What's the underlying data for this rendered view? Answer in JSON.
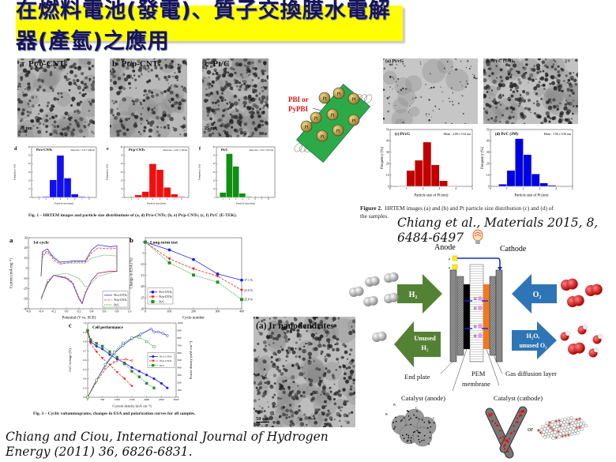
{
  "title": "在燃料電池(發電)、質子交換膜水電解器(產氫)之應用",
  "fig1": {
    "tem": [
      {
        "panel": "a",
        "label": "Pt/o-CNTs",
        "scale": "25 nm"
      },
      {
        "panel": "b",
        "label": "Pt/p-CNTs",
        "scale": ""
      },
      {
        "panel": "c",
        "label": "Pt/C",
        "scale": "25 nm"
      }
    ],
    "caption": "Fig. 1 – HRTEM images and particle size distributions of (a, d) Pt/o-CNTs; (b, e) Pt/p-CNTs; (c, f) Pt/C (E-TEK)."
  },
  "pbi": {
    "label_line1": "PBI or",
    "label_line2": "PyPBI",
    "particle": "Pt"
  },
  "fig2": {
    "tem": [
      {
        "label": "(a) Pt/cG"
      },
      {
        "label": "(b) Pt/C (JM)"
      }
    ],
    "caption_bold": "Figure 2.",
    "caption": "HRTEM images (a) and (b) and Pt particle size distribution (c) and (d) of",
    "caption_line2": "the samples.",
    "citation": "Chiang et al., Materials 2015, 8, 6484-6497"
  },
  "fig3": {
    "caption": "Fig. 3 – Cyclic voltammograms, changes in ESA and polarization curves for all samples."
  },
  "ir_tem": {
    "label": "(a) Ir nanodendrites",
    "scale": "50 nm"
  },
  "citation_bottom": {
    "line1": "Chiang and Ciou, International Journal of Hydrogen",
    "line2": "Energy (2011) 36, 6826-6831."
  },
  "fuel_cell": {
    "anode": "Anode",
    "cathode": "Cathode",
    "electron": "e",
    "h2_in": "H₂",
    "h2_out_1": "Unused",
    "h2_out_2": "H₂",
    "o2_in": "O₂",
    "out_1": "H₂O,",
    "out_2": "unused O₂",
    "proton": "H",
    "end_plate": "End plate",
    "pem_1": "PEM",
    "pem_2": "membrane",
    "gdl": "Gas diffusion layer",
    "cat_anode": "Catalyst (anode)",
    "cat_cathode": "Catalyst (cathode)",
    "pt": "Pt",
    "c": "C",
    "or": "or",
    "colors": {
      "h2_arrow": "#548235",
      "o2_arrow": "#2e75b6",
      "cathode_catalyst": "#f07820",
      "anode_catalyst": "#000000",
      "proton": "#e89ae8"
    }
  },
  "chart_data": [
    {
      "id": "fig1-d",
      "type": "bar",
      "panel": "d",
      "title": "Pt/o-CNTs",
      "annotation": "Mean size = 3.52 ± 0.86 nm",
      "xlabel": "Particle size (nm)",
      "ylabel": "Frequency (%)",
      "xlim": [
        0,
        9
      ],
      "ylim": [
        0,
        60
      ],
      "xticks": [
        "1",
        "2",
        "3",
        "4",
        "5",
        "6",
        "7",
        "8"
      ],
      "xtick_values": [
        1,
        2,
        3,
        4,
        5,
        6,
        7,
        8
      ],
      "yticks": [
        "0",
        "10",
        "20",
        "30",
        "40",
        "50",
        "60"
      ],
      "ytick_values": [
        0,
        10,
        20,
        30,
        40,
        50,
        60
      ],
      "bin_start": 0.5,
      "bin_width": 1,
      "series": [
        {
          "color": "#1010ee",
          "values": [
            0,
            1,
            21,
            50,
            23,
            4,
            1,
            0
          ]
        }
      ]
    },
    {
      "id": "fig1-e",
      "type": "bar",
      "panel": "e",
      "title": "Pt/p-CNTs",
      "annotation": "Mean size = 4.29 ± 1.08 nm",
      "xlabel": "Particle size (nm)",
      "ylabel": "Frequency (%)",
      "xlim": [
        0,
        9
      ],
      "ylim": [
        0,
        60
      ],
      "xticks": [
        "1",
        "2",
        "3",
        "4",
        "5",
        "6",
        "7",
        "8"
      ],
      "xtick_values": [
        1,
        2,
        3,
        4,
        5,
        6,
        7,
        8
      ],
      "yticks": [
        "0",
        "10",
        "20",
        "30",
        "40",
        "50",
        "60"
      ],
      "ytick_values": [
        0,
        10,
        20,
        30,
        40,
        50,
        60
      ],
      "bin_start": 0.5,
      "bin_width": 1,
      "series": [
        {
          "color": "#ee1010",
          "values": [
            0,
            3,
            7,
            40,
            33,
            12,
            4,
            1
          ]
        }
      ]
    },
    {
      "id": "fig1-f",
      "type": "bar",
      "panel": "f",
      "title": "Pt/C",
      "annotation": "Mean size = 2.61 ± 0.67 nm",
      "xlabel": "Particle size (nm)",
      "ylabel": "Frequency (%)",
      "xlim": [
        0,
        9
      ],
      "ylim": [
        0,
        60
      ],
      "xticks": [
        "1",
        "2",
        "3",
        "4",
        "5",
        "6",
        "7",
        "8"
      ],
      "xtick_values": [
        1,
        2,
        3,
        4,
        5,
        6,
        7,
        8
      ],
      "yticks": [
        "0",
        "10",
        "20",
        "30",
        "40",
        "50",
        "60"
      ],
      "ytick_values": [
        0,
        10,
        20,
        30,
        40,
        50,
        60
      ],
      "bin_start": 0.5,
      "bin_width": 1,
      "series": [
        {
          "color": "#109010",
          "values": [
            6,
            52,
            37,
            5,
            1,
            0,
            0,
            0
          ]
        }
      ]
    },
    {
      "id": "fig2-c",
      "type": "bar",
      "title": "(c) Pt/cG",
      "annotation": "Mean : 2.08 ± 0.52 nm",
      "xlabel": "Particle size of Pt (nm)",
      "ylabel": "Frequency (%)",
      "xlim": [
        0,
        5
      ],
      "ylim": [
        0,
        50
      ],
      "xticks": [
        "0",
        "1",
        "2",
        "3",
        "4",
        "5"
      ],
      "xtick_values": [
        0,
        1,
        2,
        3,
        4,
        5
      ],
      "yticks": [
        "0",
        "10",
        "20",
        "30",
        "40",
        "50"
      ],
      "ytick_values": [
        0,
        10,
        20,
        30,
        40,
        50
      ],
      "bin_start": 0.5,
      "bin_width": 0.5,
      "series": [
        {
          "color": "#c00000",
          "values": [
            0.5,
            14,
            23,
            39,
            19,
            5,
            0.5
          ]
        }
      ]
    },
    {
      "id": "fig2-d",
      "type": "bar",
      "title": "(d) Pt/C (JM)",
      "annotation": "Mean : 1.96 ± 0.50 nm",
      "xlabel": "Particle size of Pt (nm)",
      "ylabel": "Frequency (%)",
      "xlim": [
        0,
        5
      ],
      "ylim": [
        0,
        50
      ],
      "xticks": [
        "0",
        "1",
        "2",
        "3",
        "4",
        "5"
      ],
      "xtick_values": [
        0,
        1,
        2,
        3,
        4,
        5
      ],
      "yticks": [
        "0",
        "10",
        "20",
        "30",
        "40",
        "50"
      ],
      "ytick_values": [
        0,
        10,
        20,
        30,
        40,
        50
      ],
      "bin_start": 0.5,
      "bin_width": 0.5,
      "series": [
        {
          "color": "#0000e0",
          "values": [
            2,
            14,
            42,
            28,
            11,
            3,
            1
          ]
        }
      ]
    },
    {
      "id": "fig3-a",
      "type": "line",
      "panel": "a",
      "title": "1st cycle",
      "xlabel": "Potential (V vs. SCE)",
      "ylabel": "Current (mA mg⁻¹)",
      "xlim": [
        -0.6,
        1.0
      ],
      "ylim": [
        -40,
        30
      ],
      "xticks": [
        "-0.6",
        "-0.4",
        "-0.2",
        "0.0",
        "0.2",
        "0.4",
        "0.6",
        "0.8",
        "1.0"
      ],
      "xtick_values": [
        -0.6,
        -0.4,
        -0.2,
        0,
        0.2,
        0.4,
        0.6,
        0.8,
        1.0
      ],
      "yticks": [
        "-40",
        "-30",
        "-20",
        "-10",
        "0",
        "10",
        "20",
        "30"
      ],
      "ytick_values": [
        -40,
        -30,
        -20,
        -10,
        0,
        10,
        20,
        30
      ],
      "legend": "bottom-right",
      "series": [
        {
          "name": "Pt/o-CNTs",
          "color": "#3030ee",
          "dash": "",
          "x": [
            -0.4,
            -0.38,
            -0.3,
            -0.2,
            -0.1,
            0.1,
            0.3,
            0.4,
            0.5,
            0.7,
            0.8,
            0.8,
            0.7,
            0.5,
            0.4,
            0.3,
            0.25,
            0.2,
            0.1,
            0.0,
            -0.2,
            -0.3,
            -0.4
          ],
          "y": [
            -8,
            16,
            19,
            10,
            6,
            7,
            7,
            18,
            23,
            21,
            22,
            -3,
            -3,
            -5,
            -12,
            -25,
            -35,
            -30,
            -15,
            -10,
            -7,
            -15,
            -30
          ]
        },
        {
          "name": "Pt/p-CNTs",
          "color": "#ee3030",
          "dash": "3,1.5",
          "x": [
            -0.4,
            -0.38,
            -0.3,
            -0.2,
            -0.1,
            0.1,
            0.3,
            0.4,
            0.5,
            0.7,
            0.8,
            0.8,
            0.7,
            0.5,
            0.4,
            0.3,
            0.25,
            0.2,
            0.1,
            0.0,
            -0.2,
            -0.3,
            -0.4
          ],
          "y": [
            -8,
            13,
            17,
            8,
            4,
            6,
            6,
            15,
            20,
            19,
            20,
            -3,
            -3,
            -5,
            -12,
            -24,
            -34,
            -29,
            -14,
            -9,
            -7,
            -14,
            -30
          ]
        },
        {
          "name": "Pt/C",
          "color": "#209020",
          "dash": "1,1",
          "x": [
            -0.4,
            -0.38,
            -0.33,
            -0.2,
            -0.1,
            0.1,
            0.3,
            0.4,
            0.6,
            0.8,
            0.8,
            0.5,
            0.35,
            0.3,
            0.2,
            0.0,
            -0.2,
            -0.3,
            -0.4
          ],
          "y": [
            -8,
            10,
            15,
            12,
            5,
            5,
            5,
            10,
            13,
            12,
            -3,
            -8,
            -18,
            -18,
            -10,
            -5,
            -7,
            -12,
            -32
          ]
        }
      ]
    },
    {
      "id": "fig3-b",
      "type": "line",
      "panel": "b",
      "title": "Long-term test",
      "xlabel": "Cycle number",
      "ylabel": "Change in ESA (%)",
      "xlim": [
        0,
        400
      ],
      "ylim": [
        -30,
        2
      ],
      "xticks": [
        "0",
        "100",
        "200",
        "300",
        "400"
      ],
      "xtick_values": [
        0,
        100,
        200,
        300,
        400
      ],
      "yticks": [
        "-30",
        "-25",
        "-20",
        "-15",
        "-10",
        "-5",
        "0"
      ],
      "ytick_values": [
        -30,
        -25,
        -20,
        -15,
        -10,
        -5,
        0
      ],
      "legend": "bottom-left",
      "annotations": [
        {
          "x": 400,
          "y": -17.1,
          "text": "-17.1 %"
        },
        {
          "x": 400,
          "y": -21.6,
          "text": "-21.6 %"
        },
        {
          "x": 400,
          "y": -25.8,
          "text": "-25.8 %"
        }
      ],
      "series": [
        {
          "name": "Pt/o-CNTs",
          "color": "#2020ee",
          "dash": "",
          "marker": "circle",
          "x": [
            0,
            100,
            200,
            300,
            400
          ],
          "y": [
            0,
            -3.5,
            -7.8,
            -14.3,
            -17.1
          ]
        },
        {
          "name": "Pt/p-CNTs",
          "color": "#ee2020",
          "dash": "3,1.5",
          "marker": "triangle",
          "x": [
            0,
            100,
            200,
            300,
            400
          ],
          "y": [
            0,
            -7.5,
            -12,
            -15.3,
            -21.6
          ]
        },
        {
          "name": "Pt/C",
          "color": "#209020",
          "dash": "1,1",
          "marker": "square",
          "x": [
            0,
            100,
            200,
            300,
            400
          ],
          "y": [
            0,
            -9.3,
            -14.8,
            -18,
            -25.8
          ]
        }
      ]
    },
    {
      "id": "fig3-c",
      "type": "line",
      "panel": "c",
      "title": "Cell performance",
      "xlabel": "Current density (mA cm⁻²)",
      "ylabel": "Cell voltage (V)",
      "y2label": "Power density (mW cm⁻²)",
      "xlim": [
        0,
        3000
      ],
      "ylim": [
        0.2,
        1.0
      ],
      "y2lim": [
        0,
        1000
      ],
      "xticks": [
        "0",
        "500",
        "1000",
        "1500",
        "2000",
        "2500",
        "3000"
      ],
      "xtick_values": [
        0,
        500,
        1000,
        1500,
        2000,
        2500,
        3000
      ],
      "yticks": [
        "0.2",
        "0.3",
        "0.4",
        "0.5",
        "0.6",
        "0.7",
        "0.8",
        "0.9",
        "1.0"
      ],
      "ytick_values": [
        0.2,
        0.3,
        0.4,
        0.5,
        0.6,
        0.7,
        0.8,
        0.9,
        1.0
      ],
      "y2ticks": [
        "0",
        "100",
        "200",
        "300",
        "400",
        "500",
        "600",
        "700",
        "800",
        "900",
        "1000"
      ],
      "y2tick_values": [
        0,
        100,
        200,
        300,
        400,
        500,
        600,
        700,
        800,
        900,
        1000
      ],
      "legend": "center-right",
      "series": [
        {
          "name": "Pt/o-CNTs",
          "color": "#2020ee",
          "dash": "",
          "marker": "circle",
          "axis": "left",
          "x": [
            0,
            100,
            300,
            500,
            750,
            1000,
            1250,
            1500,
            1750,
            2000,
            2250,
            2500,
            2700
          ],
          "y": [
            0.92,
            0.8,
            0.75,
            0.72,
            0.66,
            0.61,
            0.57,
            0.52,
            0.48,
            0.44,
            0.4,
            0.35,
            0.3
          ]
        },
        {
          "name": "Pt/p-CNTs",
          "color": "#ee2020",
          "dash": "3,1.5",
          "marker": "triangle",
          "axis": "left",
          "x": [
            0,
            100,
            300,
            500,
            750,
            1000,
            1250,
            1500
          ],
          "y": [
            0.9,
            0.78,
            0.69,
            0.62,
            0.55,
            0.47,
            0.4,
            0.32
          ]
        },
        {
          "name": "Pt/C",
          "color": "#209020",
          "dash": "1,1",
          "marker": "square",
          "axis": "left",
          "x": [
            0,
            100,
            300,
            500,
            750,
            1000,
            1250,
            1500,
            1750,
            2000,
            2250
          ],
          "y": [
            0.92,
            0.82,
            0.78,
            0.75,
            0.69,
            0.63,
            0.56,
            0.48,
            0.42,
            0.35,
            0.3
          ]
        },
        {
          "name": "",
          "color": "#2020ee",
          "dash": "",
          "marker": "circle-open",
          "axis": "right",
          "x": [
            0,
            300,
            600,
            900,
            1200,
            1500,
            1800,
            2150,
            2250,
            2400,
            2550,
            2700
          ],
          "y": [
            0,
            230,
            430,
            590,
            700,
            790,
            850,
            920,
            880,
            880,
            860,
            830
          ]
        },
        {
          "name": "",
          "color": "#ee2020",
          "dash": "3,1.5",
          "marker": "triangle-open",
          "axis": "right",
          "x": [
            0,
            300,
            600,
            900,
            1100,
            1300,
            1500
          ],
          "y": [
            0,
            210,
            380,
            470,
            500,
            510,
            490
          ]
        },
        {
          "name": "",
          "color": "#209020",
          "dash": "1,1",
          "marker": "square-open",
          "axis": "right",
          "x": [
            0,
            300,
            600,
            900,
            1200,
            1500,
            1750,
            2000,
            2250
          ],
          "y": [
            0,
            230,
            440,
            610,
            730,
            800,
            810,
            750,
            680
          ]
        }
      ]
    }
  ]
}
